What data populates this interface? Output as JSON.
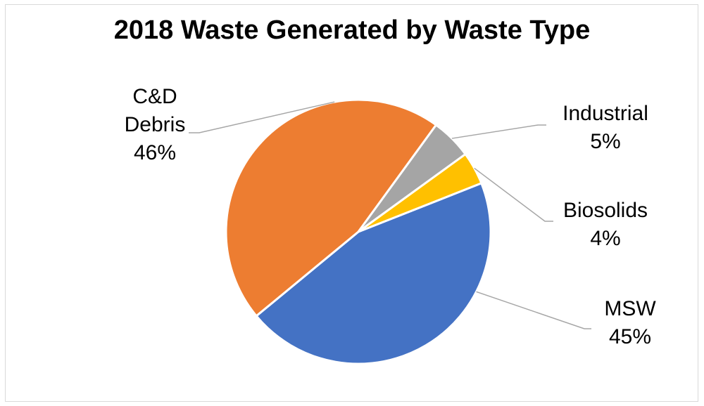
{
  "chart_data": {
    "type": "pie",
    "title": "2018 Waste Generated by Waste Type",
    "categories": [
      "MSW",
      "C&D Debris",
      "Industrial",
      "Biosolids"
    ],
    "values": [
      45,
      46,
      5,
      4
    ],
    "value_labels": [
      "45%",
      "46%",
      "5%",
      "4%"
    ],
    "label_lines": {
      "MSW": [
        "MSW",
        "45%"
      ],
      "C&D Debris": [
        "C&D",
        "Debris",
        "46%"
      ],
      "Industrial": [
        "Industrial",
        "5%"
      ],
      "Biosolids": [
        "Biosolids",
        "4%"
      ]
    },
    "colors": {
      "MSW": "#4472C4",
      "C&D Debris": "#ED7D31",
      "Industrial": "#A5A5A5",
      "Biosolids": "#FFC000"
    },
    "legend": "none",
    "label_position": "outside-with-leader-lines"
  }
}
